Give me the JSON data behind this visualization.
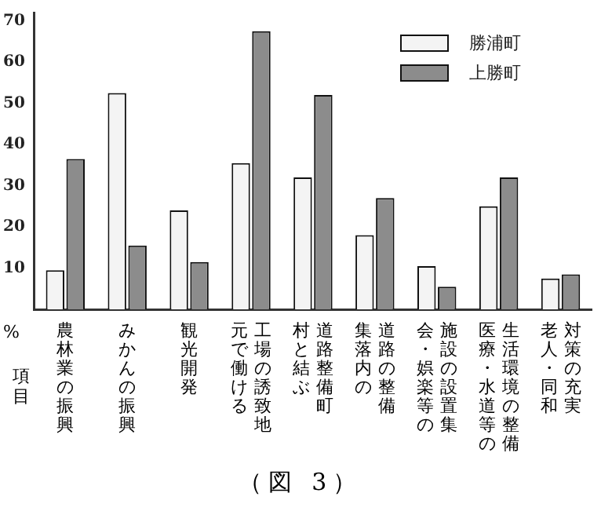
{
  "chart_data": {
    "type": "bar",
    "title": "（図 3）",
    "xlabel": "項目",
    "ylabel": "%",
    "categories": [
      "農林業の振興",
      "みかんの振興",
      "観光開発",
      "工場の誘致地元で働ける",
      "道路整備町村と結ぶ",
      "道路の整備集落内の",
      "施設の設置集会・娯楽等の",
      "生活環境の整備医療・水道等の",
      "対策の充実老人・同和"
    ],
    "series": [
      {
        "name": "勝浦町",
        "color": "#f4f4f4",
        "values": [
          9.5,
          52.5,
          24,
          35.5,
          32,
          18,
          10.5,
          25,
          7.5
        ]
      },
      {
        "name": "上勝町",
        "color": "#8c8c8c",
        "values": [
          36.5,
          15.5,
          11.5,
          67.5,
          52,
          27,
          5.5,
          32,
          8.5
        ]
      }
    ],
    "ylim": [
      0,
      72
    ],
    "yticks": [
      10,
      20,
      30,
      40,
      50,
      60,
      70
    ],
    "grid": false,
    "legend": "top right"
  }
}
